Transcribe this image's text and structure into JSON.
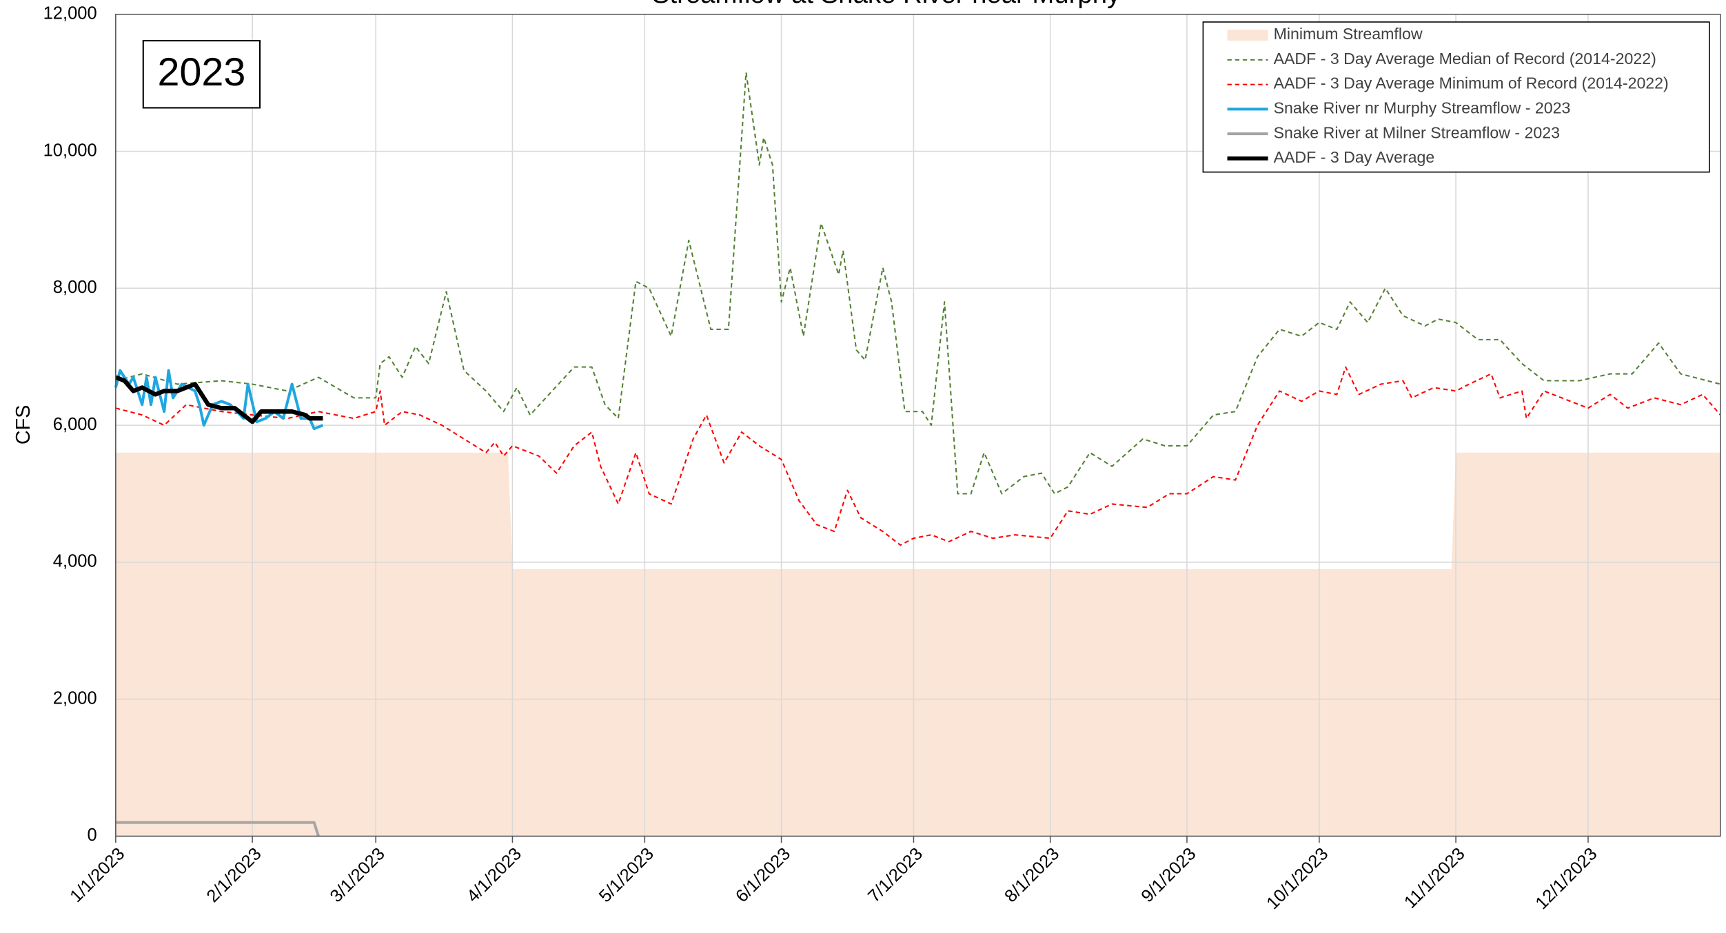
{
  "chart_data": {
    "type": "line",
    "title": "Streamflow at Snake River near Murphy",
    "annotation": "2023",
    "y_label": "CFS",
    "xlim": [
      "2023-01-01",
      "2023-12-31"
    ],
    "xticks": [
      {
        "value": "2023-01-01",
        "label": "1/1/2023"
      },
      {
        "value": "2023-02-01",
        "label": "2/1/2023"
      },
      {
        "value": "2023-03-01",
        "label": "3/1/2023"
      },
      {
        "value": "2023-04-01",
        "label": "4/1/2023"
      },
      {
        "value": "2023-05-01",
        "label": "5/1/2023"
      },
      {
        "value": "2023-06-01",
        "label": "6/1/2023"
      },
      {
        "value": "2023-07-01",
        "label": "7/1/2023"
      },
      {
        "value": "2023-08-01",
        "label": "8/1/2023"
      },
      {
        "value": "2023-09-01",
        "label": "9/1/2023"
      },
      {
        "value": "2023-10-01",
        "label": "10/1/2023"
      },
      {
        "value": "2023-11-01",
        "label": "11/1/2023"
      },
      {
        "value": "2023-12-01",
        "label": "12/1/2023"
      }
    ],
    "ylim": [
      0,
      12000
    ],
    "yticks": [
      0,
      {
        "value": 2000,
        "label": "2,000"
      },
      {
        "value": 4000,
        "label": "4,000"
      },
      {
        "value": 6000,
        "label": "6,000"
      },
      {
        "value": 8000,
        "label": "8,000"
      },
      {
        "value": 10000,
        "label": "10,000"
      },
      {
        "value": 12000,
        "label": "12,000"
      }
    ],
    "grid": true,
    "legend": "upper right",
    "series": [
      {
        "name": "Minimum Streamflow",
        "color": "#fbe5d6",
        "kind": "area",
        "x": [
          "2023-01-01",
          "2023-03-31",
          "2023-04-01",
          "2023-10-31",
          "2023-11-01",
          "2023-12-31"
        ],
        "values": [
          5600,
          5600,
          3900,
          3900,
          5600,
          5600
        ]
      },
      {
        "name": "AADF - 3 Day Average Median of Record (2014-2022)",
        "color": "#548235",
        "dashed": true,
        "x": [
          "2023-01-01",
          "2023-01-07",
          "2023-01-15",
          "2023-01-25",
          "2023-02-01",
          "2023-02-09",
          "2023-02-16",
          "2023-02-24",
          "2023-03-01",
          "2023-03-02",
          "2023-03-04",
          "2023-03-07",
          "2023-03-10",
          "2023-03-13",
          "2023-03-17",
          "2023-03-21",
          "2023-03-26",
          "2023-03-30",
          "2023-04-02",
          "2023-04-05",
          "2023-04-10",
          "2023-04-15",
          "2023-04-19",
          "2023-04-22",
          "2023-04-25",
          "2023-04-29",
          "2023-05-02",
          "2023-05-07",
          "2023-05-11",
          "2023-05-16",
          "2023-05-20",
          "2023-05-24",
          "2023-05-27",
          "2023-05-28",
          "2023-05-30",
          "2023-06-01",
          "2023-06-03",
          "2023-06-06",
          "2023-06-10",
          "2023-06-14",
          "2023-06-15",
          "2023-06-18",
          "2023-06-20",
          "2023-06-24",
          "2023-06-26",
          "2023-06-29",
          "2023-07-03",
          "2023-07-05",
          "2023-07-08",
          "2023-07-11",
          "2023-07-14",
          "2023-07-17",
          "2023-07-21",
          "2023-07-26",
          "2023-07-30",
          "2023-08-02",
          "2023-08-05",
          "2023-08-10",
          "2023-08-15",
          "2023-08-22",
          "2023-08-27",
          "2023-09-01",
          "2023-09-07",
          "2023-09-12",
          "2023-09-17",
          "2023-09-22",
          "2023-09-27",
          "2023-10-01",
          "2023-10-05",
          "2023-10-08",
          "2023-10-12",
          "2023-10-16",
          "2023-10-20",
          "2023-10-25",
          "2023-10-28",
          "2023-11-01",
          "2023-11-06",
          "2023-11-11",
          "2023-11-16",
          "2023-11-21",
          "2023-11-29",
          "2023-12-06",
          "2023-12-11",
          "2023-12-17",
          "2023-12-22",
          "2023-12-31"
        ],
        "values": [
          6650,
          6750,
          6600,
          6650,
          6600,
          6500,
          6700,
          6400,
          6400,
          6900,
          7000,
          6700,
          7150,
          6900,
          7950,
          6800,
          6500,
          6200,
          6550,
          6150,
          6500,
          6850,
          6850,
          6300,
          6100,
          8100,
          8000,
          7300,
          8700,
          7400,
          7400,
          11150,
          9800,
          10200,
          9800,
          7800,
          8300,
          7300,
          8950,
          8200,
          8550,
          7100,
          6950,
          8300,
          7800,
          6200,
          6200,
          6000,
          7800,
          5000,
          5000,
          5600,
          5000,
          5250,
          5300,
          5000,
          5100,
          5600,
          5400,
          5800,
          5700,
          5700,
          6150,
          6200,
          7000,
          7400,
          7300,
          7500,
          7400,
          7800,
          7500,
          8000,
          7600,
          7450,
          7550,
          7500,
          7250,
          7250,
          6900,
          6650,
          6650,
          6750,
          6750,
          7200,
          6750,
          6600
        ]
      },
      {
        "name": "AADF - 3 Day Average Minimum of Record (2014-2022)",
        "color": "#ff0000",
        "dashed": true,
        "x": [
          "2023-01-01",
          "2023-01-07",
          "2023-01-12",
          "2023-01-17",
          "2023-01-25",
          "2023-02-01",
          "2023-02-09",
          "2023-02-16",
          "2023-02-24",
          "2023-03-01",
          "2023-03-02",
          "2023-03-03",
          "2023-03-07",
          "2023-03-11",
          "2023-03-16",
          "2023-03-21",
          "2023-03-26",
          "2023-03-28",
          "2023-03-30",
          "2023-04-01",
          "2023-04-07",
          "2023-04-11",
          "2023-04-15",
          "2023-04-19",
          "2023-04-21",
          "2023-04-25",
          "2023-04-29",
          "2023-05-02",
          "2023-05-07",
          "2023-05-12",
          "2023-05-15",
          "2023-05-19",
          "2023-05-23",
          "2023-05-27",
          "2023-06-01",
          "2023-06-05",
          "2023-06-09",
          "2023-06-13",
          "2023-06-16",
          "2023-06-19",
          "2023-06-24",
          "2023-06-28",
          "2023-07-01",
          "2023-07-05",
          "2023-07-09",
          "2023-07-14",
          "2023-07-19",
          "2023-07-24",
          "2023-08-01",
          "2023-08-05",
          "2023-08-10",
          "2023-08-15",
          "2023-08-23",
          "2023-08-28",
          "2023-09-01",
          "2023-09-07",
          "2023-09-12",
          "2023-09-17",
          "2023-09-22",
          "2023-09-27",
          "2023-10-01",
          "2023-10-05",
          "2023-10-07",
          "2023-10-10",
          "2023-10-15",
          "2023-10-20",
          "2023-10-22",
          "2023-10-27",
          "2023-11-01",
          "2023-11-04",
          "2023-11-09",
          "2023-11-11",
          "2023-11-16",
          "2023-11-17",
          "2023-11-21",
          "2023-12-01",
          "2023-12-06",
          "2023-12-10",
          "2023-12-16",
          "2023-12-22",
          "2023-12-27",
          "2023-12-31"
        ],
        "values": [
          6250,
          6150,
          6000,
          6300,
          6200,
          6150,
          6100,
          6200,
          6100,
          6200,
          6500,
          6000,
          6200,
          6150,
          6000,
          5800,
          5600,
          5750,
          5550,
          5700,
          5550,
          5300,
          5700,
          5900,
          5400,
          4850,
          5600,
          5000,
          4850,
          5800,
          6150,
          5450,
          5900,
          5700,
          5500,
          4900,
          4550,
          4450,
          5050,
          4650,
          4450,
          4250,
          4350,
          4400,
          4300,
          4450,
          4350,
          4400,
          4350,
          4750,
          4700,
          4850,
          4800,
          5000,
          5000,
          5250,
          5200,
          6000,
          6500,
          6350,
          6500,
          6450,
          6850,
          6450,
          6600,
          6650,
          6400,
          6550,
          6500,
          6600,
          6750,
          6400,
          6500,
          6100,
          6500,
          6250,
          6450,
          6250,
          6400,
          6300,
          6450,
          6150
        ]
      },
      {
        "name": "Snake River nr Murphy Streamflow - 2023",
        "color": "#1ea7e1",
        "width": 2.5,
        "x": [
          "2023-01-01",
          "2023-01-02",
          "2023-01-04",
          "2023-01-05",
          "2023-01-07",
          "2023-01-08",
          "2023-01-09",
          "2023-01-10",
          "2023-01-12",
          "2023-01-13",
          "2023-01-14",
          "2023-01-16",
          "2023-01-19",
          "2023-01-20",
          "2023-01-21",
          "2023-01-23",
          "2023-01-25",
          "2023-01-27",
          "2023-01-30",
          "2023-01-31",
          "2023-02-02",
          "2023-02-04",
          "2023-02-06",
          "2023-02-08",
          "2023-02-10",
          "2023-02-12",
          "2023-02-14",
          "2023-02-15",
          "2023-02-17"
        ],
        "values": [
          6550,
          6800,
          6600,
          6700,
          6300,
          6700,
          6300,
          6700,
          6200,
          6800,
          6400,
          6600,
          6500,
          6300,
          6000,
          6300,
          6350,
          6300,
          6100,
          6600,
          6050,
          6100,
          6200,
          6100,
          6600,
          6100,
          6100,
          5950,
          6000
        ]
      },
      {
        "name": "Snake River at Milner Streamflow - 2023",
        "color": "#a5a5a5",
        "width": 2.5,
        "x": [
          "2023-01-01",
          "2023-02-15",
          "2023-02-16"
        ],
        "values": [
          200,
          200,
          0
        ]
      },
      {
        "name": "AADF - 3 Day Average",
        "color": "#000000",
        "width": 4,
        "x": [
          "2023-01-01",
          "2023-01-03",
          "2023-01-05",
          "2023-01-07",
          "2023-01-10",
          "2023-01-12",
          "2023-01-15",
          "2023-01-17",
          "2023-01-19",
          "2023-01-22",
          "2023-01-25",
          "2023-01-28",
          "2023-01-30",
          "2023-02-01",
          "2023-02-03",
          "2023-02-05",
          "2023-02-08",
          "2023-02-10",
          "2023-02-13",
          "2023-02-14",
          "2023-02-17"
        ],
        "values": [
          6700,
          6650,
          6500,
          6550,
          6450,
          6500,
          6500,
          6550,
          6600,
          6300,
          6250,
          6250,
          6150,
          6050,
          6200,
          6200,
          6200,
          6200,
          6150,
          6100,
          6100
        ]
      }
    ]
  }
}
